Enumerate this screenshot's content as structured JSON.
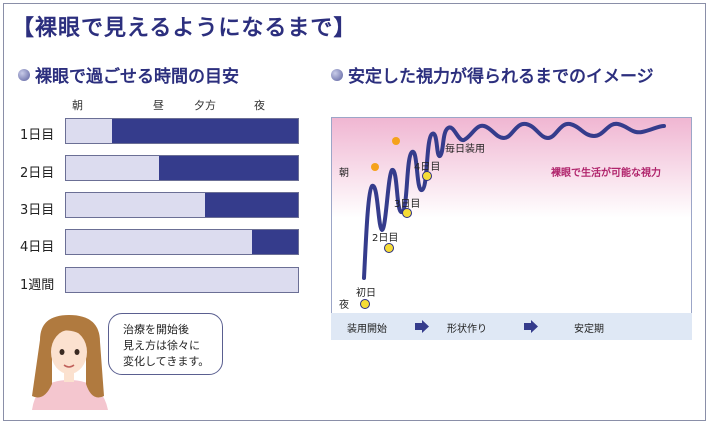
{
  "title": "【裸眼で見えるようになるまで】",
  "left_section": {
    "title": "裸眼で過ごせる時間の目安",
    "time_of_day": [
      "朝",
      "昼",
      "夕方",
      "夜"
    ],
    "rows": [
      {
        "label": "1日目",
        "visible_fraction": 0.2
      },
      {
        "label": "2日目",
        "visible_fraction": 0.4
      },
      {
        "label": "3日目",
        "visible_fraction": 0.6
      },
      {
        "label": "4日目",
        "visible_fraction": 0.8
      },
      {
        "label": "1週間",
        "visible_fraction": 1.0
      }
    ],
    "bubble_lines": [
      "治療を開始後",
      "見え方は徐々に",
      "変化してきます。"
    ]
  },
  "right_section": {
    "title": "安定した視力が得られるまでのイメージ",
    "labels": {
      "morning": "朝",
      "night": "夜",
      "daily_wear": "毎日装用",
      "naked_eye": "裸眼で生活が可能な視力",
      "days": [
        "初日",
        "2日目",
        "3日目",
        "4日目"
      ]
    },
    "phases": [
      "装用開始",
      "形状作り",
      "安定期"
    ]
  },
  "colors": {
    "navy": "#2c2f7e",
    "bar_fill": "#353c8c",
    "bar_empty": "#dcdcef",
    "pink_text": "#b0246c"
  }
}
